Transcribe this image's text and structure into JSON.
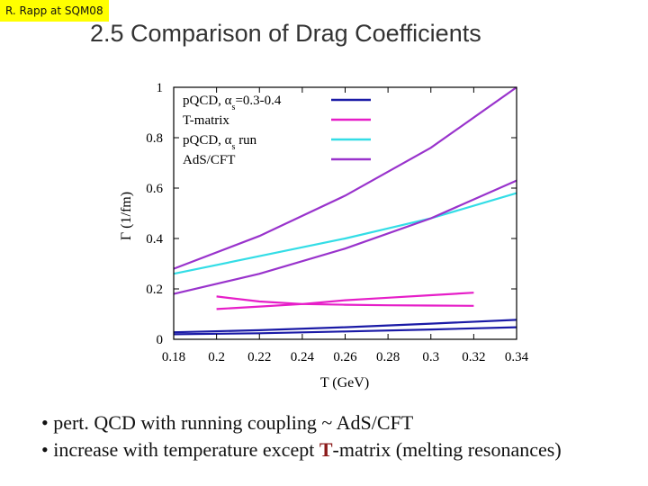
{
  "header": {
    "tag": "R. Rapp at SQM08",
    "title": "2.5 Comparison of Drag Coefficients"
  },
  "colors": {
    "pqcd_fixed": "#1a1aa6",
    "tmatrix": "#e61ec8",
    "pqcd_run": "#33dde6",
    "adscft": "#9933cc",
    "tag_bg": "#ffff00"
  },
  "chart_data": {
    "type": "line",
    "title": "",
    "xlabel": "T (GeV)",
    "ylabel": "Γ (1/fm)",
    "xlim": [
      0.18,
      0.34
    ],
    "ylim": [
      0,
      1
    ],
    "xticks": [
      "0.18",
      "0.2",
      "0.22",
      "0.24",
      "0.26",
      "0.28",
      "0.3",
      "0.32",
      "0.34"
    ],
    "yticks": [
      "0",
      "0.2",
      "0.4",
      "0.6",
      "0.8",
      "1"
    ],
    "legend_position": "top-left",
    "series": [
      {
        "name": "pQCD, αs=0.3-0.4",
        "legend_base": "pQCD, α",
        "legend_sub": "s",
        "legend_rest": "=0.3-0.4",
        "color_key": "pqcd_fixed",
        "x": [
          0.18,
          0.22,
          0.26,
          0.3,
          0.34
        ],
        "values": [
          0.02,
          0.024,
          0.031,
          0.039,
          0.048
        ]
      },
      {
        "name": "pQCD, αs=0.3-0.4 (upper)",
        "legend": false,
        "color_key": "pqcd_fixed",
        "x": [
          0.18,
          0.22,
          0.26,
          0.3,
          0.34
        ],
        "values": [
          0.028,
          0.036,
          0.048,
          0.062,
          0.077
        ]
      },
      {
        "name": "T-matrix",
        "legend_base": "T-matrix",
        "legend_sub": "",
        "legend_rest": "",
        "color_key": "tmatrix",
        "x": [
          0.2,
          0.22,
          0.24,
          0.26,
          0.28,
          0.3,
          0.32
        ],
        "values": [
          0.12,
          0.13,
          0.14,
          0.155,
          0.165,
          0.175,
          0.185
        ]
      },
      {
        "name": "T-matrix (lower)",
        "legend": false,
        "color_key": "tmatrix",
        "x": [
          0.2,
          0.22,
          0.24,
          0.26,
          0.28,
          0.3,
          0.32
        ],
        "values": [
          0.17,
          0.15,
          0.14,
          0.137,
          0.135,
          0.134,
          0.133
        ]
      },
      {
        "name": "pQCD, αs run",
        "legend_base": "pQCD, α",
        "legend_sub": "s",
        "legend_rest": " run",
        "color_key": "pqcd_run",
        "x": [
          0.18,
          0.22,
          0.26,
          0.3,
          0.34
        ],
        "values": [
          0.26,
          0.33,
          0.4,
          0.48,
          0.58
        ]
      },
      {
        "name": "AdS/CFT",
        "legend_base": "AdS/CFT",
        "legend_sub": "",
        "legend_rest": "",
        "color_key": "adscft",
        "x": [
          0.18,
          0.22,
          0.26,
          0.3,
          0.34
        ],
        "values": [
          0.28,
          0.41,
          0.57,
          0.76,
          1.0
        ]
      },
      {
        "name": "AdS/CFT (lower)",
        "legend": false,
        "color_key": "adscft",
        "x": [
          0.18,
          0.22,
          0.26,
          0.3,
          0.34
        ],
        "values": [
          0.18,
          0.26,
          0.36,
          0.48,
          0.63
        ]
      }
    ]
  },
  "bullets": [
    {
      "prefix": "• pert. QCD with running coupling ~ Ad",
      "mid": "S",
      "suffix": "/CFT",
      "highlight": false
    },
    {
      "prefix": "• increase with temperature except ",
      "mid": "T",
      "suffix": "-matrix (melting resonances)",
      "highlight": true
    }
  ]
}
